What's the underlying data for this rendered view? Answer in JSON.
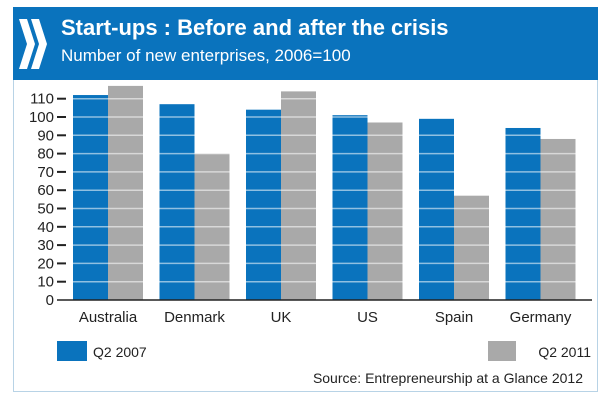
{
  "header": {
    "logo_icon": "oecd-chevrons-icon",
    "title": "Start-ups : Before and after the crisis",
    "subtitle": "Number of new enterprises, 2006=100"
  },
  "colors": {
    "header_bg": "#0a73bd",
    "series_q2_2007": "#0a73bd",
    "series_q2_2011": "#a9a9a9"
  },
  "chart_data": {
    "type": "bar",
    "title": "Start-ups : Before and after the crisis",
    "subtitle": "Number of new enterprises, 2006=100",
    "xlabel": "",
    "ylabel": "",
    "categories": [
      "Australia",
      "Denmark",
      "UK",
      "US",
      "Spain",
      "Germany"
    ],
    "series": [
      {
        "name": "Q2 2007",
        "color": "#0a73bd",
        "values": [
          112,
          107,
          104,
          101,
          99,
          94
        ]
      },
      {
        "name": "Q2 2011",
        "color": "#a9a9a9",
        "values": [
          117,
          80,
          114,
          97,
          57,
          88
        ]
      }
    ],
    "ylim": [
      0,
      120
    ],
    "yticks": [
      0,
      10,
      20,
      30,
      40,
      50,
      60,
      70,
      80,
      90,
      100,
      110
    ],
    "grid": "white horizontal lines drawn over bars at each tick",
    "legend": {
      "position": "bottom",
      "entries": [
        "Q2 2007",
        "Q2 2011"
      ]
    },
    "source": "Source: Entrepreneurship at a Glance 2012"
  }
}
